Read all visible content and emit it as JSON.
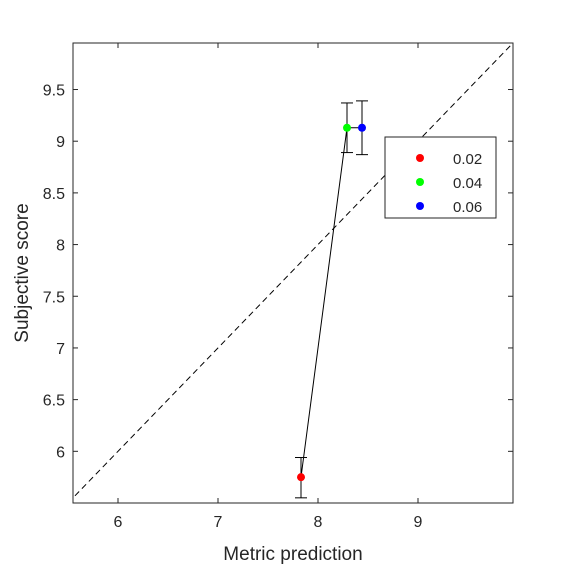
{
  "chart_data": {
    "type": "scatter",
    "title": "",
    "xlabel": "Metric prediction",
    "ylabel": "Subjective score",
    "xlim": [
      5.55,
      9.95
    ],
    "ylim": [
      5.5,
      9.95
    ],
    "xticks": [
      6,
      7,
      8,
      9
    ],
    "yticks": [
      6,
      6.5,
      7,
      7.5,
      8,
      8.5,
      9,
      9.5
    ],
    "xtick_labels": [
      "6",
      "7",
      "8",
      "9"
    ],
    "ytick_labels": [
      "6",
      "6.5",
      "7",
      "7.5",
      "8",
      "8.5",
      "9",
      "9.5"
    ],
    "grid": false,
    "identity_line": "dashed",
    "connecting_line": true,
    "legend_location": "right, upper-middle",
    "series": [
      {
        "name": "0.02",
        "color": "#ff0000",
        "x": 7.83,
        "y": 5.75,
        "err_low": 0.2,
        "err_high": 0.19
      },
      {
        "name": "0.04",
        "color": "#00ff00",
        "x": 8.29,
        "y": 9.13,
        "err_low": 0.24,
        "err_high": 0.24
      },
      {
        "name": "0.06",
        "color": "#0000ff",
        "x": 8.44,
        "y": 9.13,
        "err_low": 0.26,
        "err_high": 0.26
      }
    ]
  }
}
